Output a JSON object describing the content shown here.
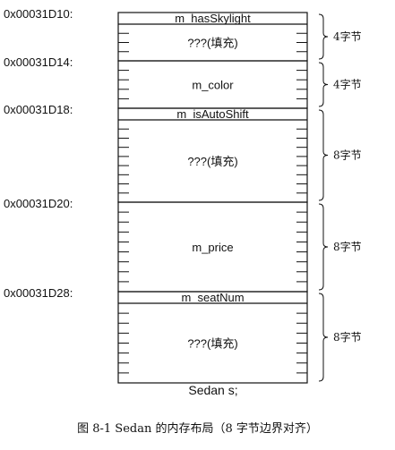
{
  "rows": [
    {
      "address": "0x00031D10:",
      "fields": [
        {
          "label": "m_hasSkylight",
          "kind": "header"
        },
        {
          "label": "???(填充)",
          "kind": "body"
        }
      ],
      "size_label": "4字节"
    },
    {
      "address": "0x00031D14:",
      "fields": [
        {
          "label": "m_color",
          "kind": "body"
        }
      ],
      "size_label": "4字节"
    },
    {
      "address": "0x00031D18:",
      "fields": [
        {
          "label": "m_isAutoShift",
          "kind": "header"
        },
        {
          "label": "???(填充)",
          "kind": "body"
        }
      ],
      "size_label": "8字节"
    },
    {
      "address": "0x00031D20:",
      "fields": [
        {
          "label": "m_price",
          "kind": "body"
        }
      ],
      "size_label": "8字节"
    },
    {
      "address": "0x00031D28:",
      "fields": [
        {
          "label": "m_seatNum",
          "kind": "header"
        },
        {
          "label": "???(填充)",
          "kind": "body"
        }
      ],
      "size_label": "8字节"
    }
  ],
  "object_label": "Sedan  s;",
  "figure_caption": "图 8-1   Sedan 的内存布局（8 字节边界对齐）"
}
